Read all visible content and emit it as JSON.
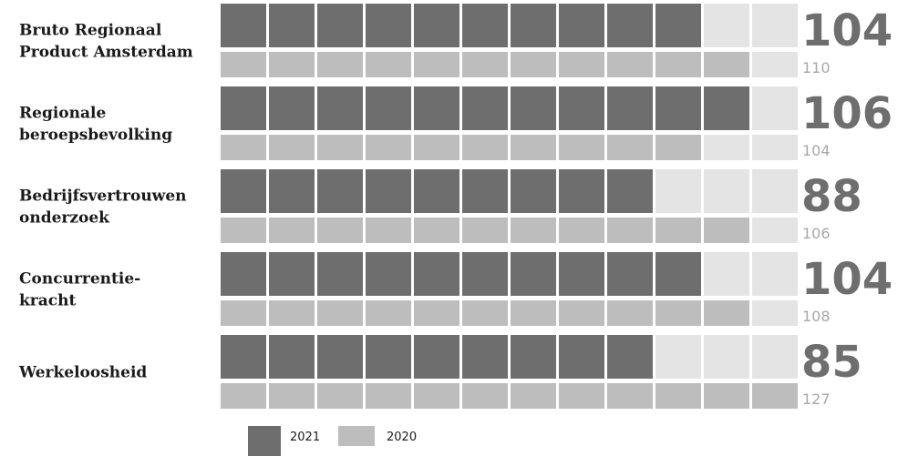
{
  "chart_data": {
    "type": "bar",
    "max_blocks": 12,
    "block_value": 10,
    "categories": [
      [
        "Bruto Regionaal",
        "Product Amsterdam"
      ],
      [
        "Regionale",
        "beroepsbevolking"
      ],
      [
        "Bedrijfsvertrouwen",
        "onderzoek"
      ],
      [
        "Concurrentie-",
        "kracht"
      ],
      [
        "Werkeloosheid"
      ]
    ],
    "series": [
      {
        "name": "2021",
        "values": [
          104,
          106,
          88,
          104,
          85
        ]
      },
      {
        "name": "2020",
        "values": [
          110,
          104,
          106,
          108,
          127
        ]
      }
    ],
    "colors": {
      "2021": "#6e6e6e",
      "2020": "#bdbdbd",
      "empty": "#e4e4e4",
      "value_2021": "#6e6e6e",
      "value_2020": "#a8a8a8"
    },
    "legend": {
      "placement": "bottom-left",
      "items": [
        "2021",
        "2020"
      ]
    }
  }
}
